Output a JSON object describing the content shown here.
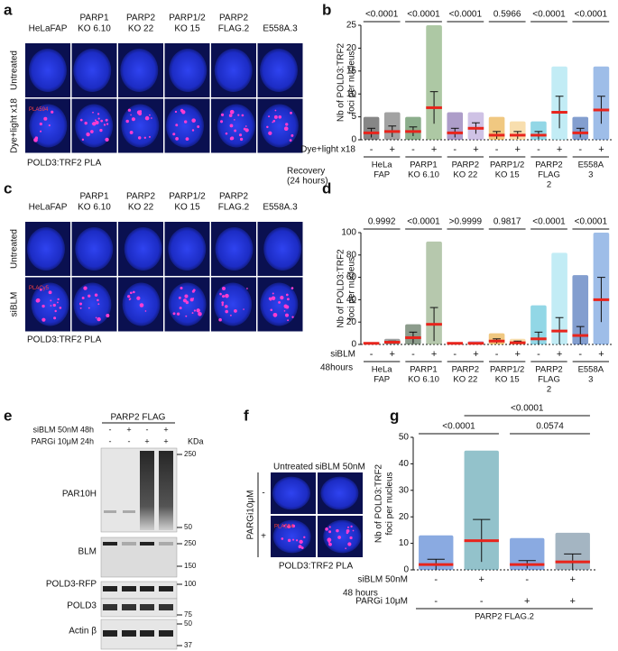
{
  "panel_labels": [
    "a",
    "b",
    "c",
    "d",
    "e",
    "f",
    "g"
  ],
  "microscopy": [
    {
      "columns": [
        [
          "HeLaFAP"
        ],
        [
          "PARP1",
          "KO 6.10"
        ],
        [
          "PARP2",
          "KO 22"
        ],
        [
          "PARP1/2",
          "KO 15"
        ],
        [
          "PARP2",
          "FLAG.2"
        ],
        [
          "E558A.3"
        ]
      ],
      "rows": [
        "Untreated",
        "Dye+light x18"
      ],
      "stain": "PLA594",
      "caption": "POLD3:TRF2 PLA"
    },
    {
      "columns": [
        [
          "HeLaFAP"
        ],
        [
          "PARP1",
          "KO 6.10"
        ],
        [
          "PARP2",
          "KO 22"
        ],
        [
          "PARP1/2",
          "KO 15"
        ],
        [
          "PARP2",
          "FLAG.2"
        ],
        [
          "E558A.3"
        ]
      ],
      "rows": [
        "Untreated",
        "siBLM"
      ],
      "stain": "PLACy5",
      "caption": "POLD3:TRF2 PLA"
    },
    {
      "columns": [
        [
          "Untreated"
        ],
        [
          "siBLM 50nM"
        ]
      ],
      "rows": [
        "-",
        "+"
      ],
      "row_title": "PARGi10μM",
      "stain": "PLA594",
      "caption": "POLD3:TRF2 PLA"
    }
  ],
  "blot": {
    "title": "PARP2 FLAG",
    "conditions": [
      {
        "name": "siBLM 50nM 48h",
        "signs": [
          "-",
          "+",
          "-",
          "+"
        ]
      },
      {
        "name": "PARGi 10μM 24h",
        "signs": [
          "-",
          "-",
          "+",
          "+"
        ]
      }
    ],
    "unit": "KDa",
    "panels": [
      {
        "name": "PAR10H",
        "markers": [
          250,
          50
        ]
      },
      {
        "name": "BLM",
        "markers": [
          250,
          150
        ]
      },
      {
        "name": "POLD3-RFP",
        "markers": [
          100
        ]
      },
      {
        "name": "POLD3",
        "markers": [
          75
        ]
      },
      {
        "name": "Actin β",
        "markers": [
          50,
          37
        ]
      }
    ]
  },
  "chart_data": [
    {
      "type": "dot",
      "ylabel": [
        "Nb of POLD3:TRF2",
        "foci per nucleus"
      ],
      "categories": [
        "-",
        "+",
        "-",
        "+",
        "-",
        "+",
        "-",
        "+",
        "-",
        "+",
        "-",
        "+"
      ],
      "values": [
        1.5,
        1.8,
        1.8,
        7,
        1.5,
        2.5,
        1,
        1,
        1,
        6,
        1.5,
        6.5
      ],
      "errors": [
        1,
        1.2,
        1,
        3.5,
        1,
        1.2,
        0.8,
        0.8,
        0.8,
        3.5,
        1,
        3
      ],
      "max": [
        5,
        6,
        5,
        25,
        6,
        6,
        5,
        4,
        4,
        16,
        5,
        16
      ],
      "colors": [
        "#222222",
        "#555555",
        "#2e6b2e",
        "#6a9a5a",
        "#6a4c9c",
        "#a78fd0",
        "#e39a1a",
        "#f2c26b",
        "#39b7d1",
        "#8fdcec",
        "#1d4ea8",
        "#4f86d6"
      ],
      "mean_color": "#e8241c",
      "ylim": [
        0,
        25
      ],
      "yticks": [
        0,
        5,
        10,
        15,
        20,
        25
      ],
      "conditions": [
        {
          "name": "Dye+light x18",
          "signs": [
            "-",
            "+",
            "-",
            "+",
            "-",
            "+",
            "-",
            "+",
            "-",
            "+",
            "-",
            "+"
          ]
        }
      ],
      "note": [
        "Recovery",
        "(24 hours)"
      ],
      "groups": [
        [
          "HeLa",
          "FAP"
        ],
        [
          "PARP1",
          "KO 6.10"
        ],
        [
          "PARP2",
          "KO 22"
        ],
        [
          "PARP1/2",
          "KO 15"
        ],
        [
          "PARP2",
          "FLAG",
          "2"
        ],
        [
          "E558A",
          "3"
        ]
      ],
      "comparisons": [
        {
          "pair": [
            0,
            1
          ],
          "p": "<0.0001"
        },
        {
          "pair": [
            2,
            3
          ],
          "p": "<0.0001"
        },
        {
          "pair": [
            4,
            5
          ],
          "p": "<0.0001"
        },
        {
          "pair": [
            6,
            7
          ],
          "p": "0.5966"
        },
        {
          "pair": [
            8,
            9
          ],
          "p": "<0.0001"
        },
        {
          "pair": [
            10,
            11
          ],
          "p": "<0.0001"
        }
      ]
    },
    {
      "type": "dot",
      "ylabel": [
        "Nb of POLD3:TRF2",
        "foci per nucleus"
      ],
      "categories": [
        "-",
        "+",
        "-",
        "+",
        "-",
        "+",
        "-",
        "+",
        "-",
        "+",
        "-",
        "+"
      ],
      "values": [
        1,
        2,
        6,
        18,
        1,
        1,
        3,
        1.5,
        5,
        12,
        8,
        40
      ],
      "errors": [
        0.5,
        1,
        5,
        15,
        0.5,
        0.5,
        2,
        1.5,
        6,
        12,
        8,
        20
      ],
      "max": [
        2,
        5,
        18,
        92,
        2,
        3,
        10,
        5,
        35,
        82,
        62,
        100
      ],
      "colors": [
        "#222222",
        "#555555",
        "#2e4a2e",
        "#7a9a6a",
        "#6a4c9c",
        "#a78fd0",
        "#e39a1a",
        "#f2c26b",
        "#39b7d1",
        "#8fdcec",
        "#1d4ea8",
        "#4f86d6"
      ],
      "mean_color": "#e8241c",
      "ylim": [
        0,
        100
      ],
      "yticks": [
        0,
        20,
        40,
        60,
        80,
        100
      ],
      "conditions": [
        {
          "name": "siBLM",
          "signs": [
            "-",
            "+",
            "-",
            "+",
            "-",
            "+",
            "-",
            "+",
            "-",
            "+",
            "-",
            "+"
          ]
        }
      ],
      "note": [
        "48hours"
      ],
      "groups": [
        [
          "HeLa",
          "FAP"
        ],
        [
          "PARP1",
          "KO 6.10"
        ],
        [
          "PARP2",
          "KO 22"
        ],
        [
          "PARP1/2",
          "KO 15"
        ],
        [
          "PARP2",
          "FLAG",
          "2"
        ],
        [
          "E558A",
          "3"
        ]
      ],
      "comparisons": [
        {
          "pair": [
            0,
            1
          ],
          "p": "0.9992"
        },
        {
          "pair": [
            2,
            3
          ],
          "p": "<0.0001"
        },
        {
          "pair": [
            4,
            5
          ],
          "p": ">0.9999"
        },
        {
          "pair": [
            6,
            7
          ],
          "p": "0.9817"
        },
        {
          "pair": [
            8,
            9
          ],
          "p": "<0.0001"
        },
        {
          "pair": [
            10,
            11
          ],
          "p": "<0.0001"
        }
      ]
    },
    {
      "type": "dot",
      "ylabel": [
        "Nb of POLD3:TRF2",
        "foci per nucleus"
      ],
      "categories": [
        "-",
        "+",
        "-",
        "+"
      ],
      "values": [
        2,
        11,
        2,
        3
      ],
      "errors": [
        2,
        8,
        1.5,
        3
      ],
      "max": [
        13,
        45,
        12,
        14
      ],
      "colors": [
        "#2a64c8",
        "#3a8fa0",
        "#2a64c8",
        "#5a7890"
      ],
      "mean_color": "#e8241c",
      "ylim": [
        0,
        50
      ],
      "yticks": [
        0,
        10,
        20,
        30,
        40,
        50
      ],
      "conditions": [
        {
          "name": "siBLM 50nM",
          "signs": [
            "-",
            "+",
            "-",
            "+"
          ]
        },
        {
          "name": "PARGi 10μM",
          "signs": [
            "-",
            "-",
            "+",
            "+"
          ]
        }
      ],
      "note": [
        "48 hours"
      ],
      "groups": [
        [
          "PARP2 FLAG.2"
        ]
      ],
      "comparisons": [
        {
          "pair": [
            0,
            1
          ],
          "p": "<0.0001"
        },
        {
          "pair": [
            2,
            3
          ],
          "p": "0.0574"
        },
        {
          "pair": [
            1,
            3
          ],
          "p": "<0.0001"
        }
      ]
    }
  ]
}
